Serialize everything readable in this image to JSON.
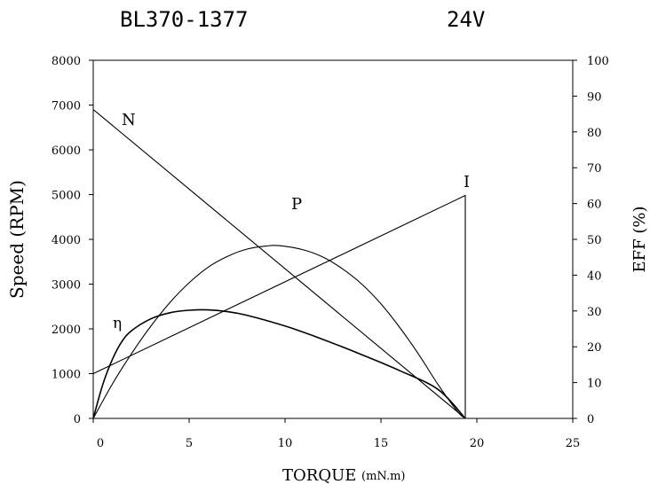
{
  "chart_data": {
    "type": "line",
    "title_left": "BL370-1377",
    "title_right": "24V",
    "xlabel": "TORQUE",
    "xlabel_unit": "(mN.m)",
    "ylabel_left": "Speed (RPM)",
    "ylabel_right": "EFF (%)",
    "xlim": [
      0,
      25
    ],
    "ylim_left": [
      0,
      8000
    ],
    "ylim_right": [
      0,
      100
    ],
    "x_ticks": [
      0,
      5,
      10,
      15,
      20,
      25
    ],
    "y_left_ticks": [
      0,
      1000,
      2000,
      3000,
      4000,
      5000,
      6000,
      7000,
      8000
    ],
    "y_right_ticks": [
      0,
      10,
      20,
      30,
      40,
      50,
      60,
      70,
      80,
      90,
      100
    ],
    "grid": false,
    "curve_labels": {
      "N": "N",
      "P": "P",
      "I": "I",
      "eta": "η"
    },
    "series": [
      {
        "key": "N",
        "name": "N",
        "axis": "left",
        "x": [
          0,
          19.4
        ],
        "y": [
          6900,
          0
        ]
      },
      {
        "key": "I",
        "name": "I",
        "axis": "left",
        "x": [
          0,
          19.4,
          19.4
        ],
        "y": [
          1000,
          4980,
          0
        ]
      },
      {
        "key": "P",
        "name": "P",
        "axis": "left",
        "x": [
          0,
          1,
          2,
          3,
          4,
          5,
          6,
          7,
          8,
          9,
          9.7,
          11,
          12,
          13,
          14,
          15,
          16,
          17,
          18,
          19,
          19.4
        ],
        "y": [
          0,
          770,
          1450,
          2060,
          2590,
          3030,
          3380,
          3620,
          3780,
          3850,
          3860,
          3760,
          3600,
          3340,
          3000,
          2560,
          2020,
          1410,
          740,
          150,
          0
        ]
      },
      {
        "key": "eta",
        "name": "η",
        "axis": "right",
        "x": [
          0,
          0.5,
          1,
          1.5,
          2,
          3,
          4,
          5,
          6,
          7,
          8,
          10,
          12,
          14,
          16,
          18,
          19.4
        ],
        "y": [
          0,
          9.5,
          16.5,
          21.5,
          24.5,
          27.8,
          29.5,
          30.2,
          30.3,
          29.8,
          28.8,
          25.8,
          22,
          17.8,
          13.3,
          8,
          0
        ]
      }
    ]
  }
}
